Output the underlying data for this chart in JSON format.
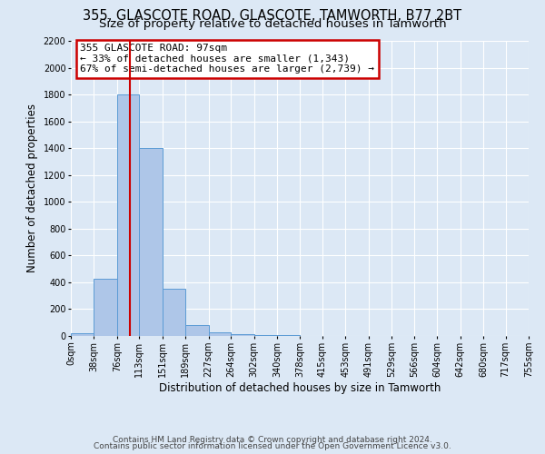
{
  "title1": "355, GLASCOTE ROAD, GLASCOTE, TAMWORTH, B77 2BT",
  "title2": "Size of property relative to detached houses in Tamworth",
  "xlabel": "Distribution of detached houses by size in Tamworth",
  "ylabel": "Number of detached properties",
  "bin_edges": [
    0,
    38,
    76,
    113,
    151,
    189,
    227,
    264,
    302,
    340,
    378,
    415,
    453,
    491,
    529,
    566,
    604,
    642,
    680,
    717,
    755
  ],
  "bin_heights": [
    20,
    425,
    1800,
    1400,
    350,
    80,
    25,
    15,
    10,
    5,
    3,
    2,
    2,
    1,
    1,
    1,
    1,
    1,
    1,
    1
  ],
  "bar_color": "#aec6e8",
  "bar_edge_color": "#5b9bd5",
  "red_line_x": 97,
  "annotation_title": "355 GLASCOTE ROAD: 97sqm",
  "annotation_line1": "← 33% of detached houses are smaller (1,343)",
  "annotation_line2": "67% of semi-detached houses are larger (2,739) →",
  "annotation_box_color": "#ffffff",
  "annotation_box_edge": "#cc0000",
  "ylim": [
    0,
    2200
  ],
  "xlim": [
    0,
    755
  ],
  "tick_labels": [
    "0sqm",
    "38sqm",
    "76sqm",
    "113sqm",
    "151sqm",
    "189sqm",
    "227sqm",
    "264sqm",
    "302sqm",
    "340sqm",
    "378sqm",
    "415sqm",
    "453sqm",
    "491sqm",
    "529sqm",
    "566sqm",
    "604sqm",
    "642sqm",
    "680sqm",
    "717sqm",
    "755sqm"
  ],
  "footnote1": "Contains HM Land Registry data © Crown copyright and database right 2024.",
  "footnote2": "Contains public sector information licensed under the Open Government Licence v3.0.",
  "bg_color": "#dce8f5",
  "plot_bg_color": "#dce8f5",
  "grid_color": "#ffffff",
  "title_fontsize": 10.5,
  "subtitle_fontsize": 9.5,
  "axis_label_fontsize": 8.5,
  "tick_fontsize": 7,
  "footnote_fontsize": 6.5,
  "yticks": [
    0,
    200,
    400,
    600,
    800,
    1000,
    1200,
    1400,
    1600,
    1800,
    2000,
    2200
  ]
}
